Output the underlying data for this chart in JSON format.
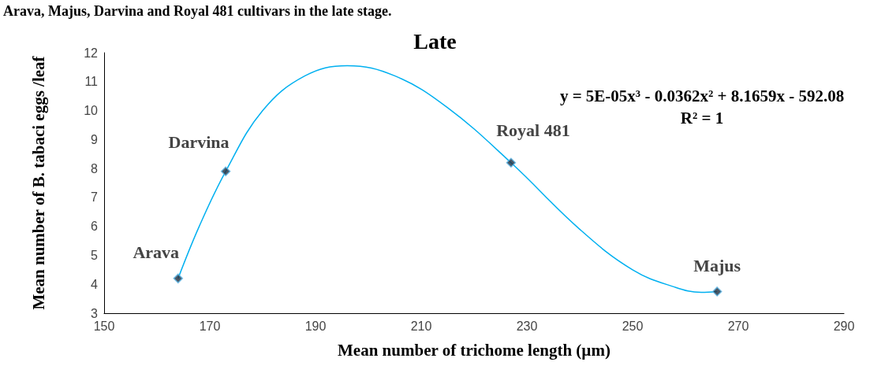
{
  "chart_data": {
    "type": "scatter",
    "title": "Late",
    "xlabel": "Mean number of trichome length (µm)",
    "ylabel": "Mean number of B. tabaci eggs /leaf",
    "series": [
      {
        "color": "#1f2d3d",
        "marker": "diamond",
        "x": [
          164,
          173,
          227,
          266
        ],
        "values": [
          4.2,
          7.9,
          8.2,
          3.75
        ]
      },
      {
        "type": "line",
        "color": "#00b0f0",
        "marker": "none",
        "x": [
          164,
          168,
          173,
          180,
          188,
          196,
          205,
          215,
          227,
          240,
          250,
          258,
          263,
          266
        ],
        "values": [
          4.2,
          6.0,
          7.9,
          10.0,
          11.2,
          11.55,
          11.2,
          10.1,
          8.2,
          5.9,
          4.5,
          3.9,
          3.72,
          3.75
        ]
      }
    ],
    "xlim": [
      150,
      290
    ],
    "xticks": [
      150,
      170,
      190,
      210,
      230,
      250,
      270,
      290
    ],
    "ylim": [
      3,
      12
    ],
    "yticks": [
      3,
      4,
      5,
      6,
      7,
      8,
      9,
      10,
      11,
      12
    ],
    "grid": false,
    "annotations": [
      "Arava, Majus, Darvina and Royal 481 cultivars in the late stage.",
      {
        "text": "Arava",
        "x": 164,
        "y": 4.2
      },
      {
        "text": "Darvina",
        "x": 173,
        "y": 7.9
      },
      {
        "text": "Royal 481",
        "x": 227,
        "y": 8.2
      },
      {
        "text": "Majus",
        "x": 266,
        "y": 3.75
      },
      "y = 5E-05x³ - 0.0362x² + 8.1659x - 592.08\nR² = 1"
    ]
  }
}
